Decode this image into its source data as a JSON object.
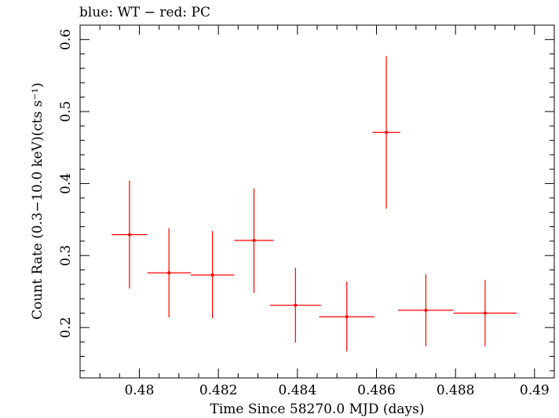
{
  "chart_data": {
    "type": "scatter",
    "title": "blue: WT − red: PC",
    "xlabel": "Time Since 58270.0 MJD (days)",
    "ylabel": "Count Rate (0.3−10.0 keV)(cts s⁻¹)",
    "xlim": [
      0.4785,
      0.4905
    ],
    "ylim": [
      0.13,
      0.62
    ],
    "x_ticks": [
      0.48,
      0.482,
      0.484,
      0.486,
      0.488,
      0.49
    ],
    "x_tick_labels": [
      "0.48",
      "0.482",
      "0.484",
      "0.486",
      "0.488",
      "0.49"
    ],
    "y_ticks": [
      0.2,
      0.3,
      0.4,
      0.5,
      0.6
    ],
    "y_tick_labels": [
      "0.2",
      "0.3",
      "0.4",
      "0.5",
      "0.6"
    ],
    "grid": false,
    "series": [
      {
        "color": "#ff0000",
        "points": [
          {
            "x": 0.47975,
            "y": 0.329,
            "xerr": 0.00045,
            "yerr_low": 0.075,
            "yerr_high": 0.075
          },
          {
            "x": 0.48075,
            "y": 0.276,
            "xerr": 0.00055,
            "yerr_low": 0.062,
            "yerr_high": 0.062
          },
          {
            "x": 0.48185,
            "y": 0.273,
            "xerr": 0.00055,
            "yerr_low": 0.06,
            "yerr_high": 0.061
          },
          {
            "x": 0.4829,
            "y": 0.321,
            "xerr": 0.0005,
            "yerr_low": 0.073,
            "yerr_high": 0.072
          },
          {
            "x": 0.48395,
            "y": 0.231,
            "xerr": 0.00065,
            "yerr_low": 0.052,
            "yerr_high": 0.052
          },
          {
            "x": 0.48525,
            "y": 0.215,
            "xerr": 0.0007,
            "yerr_low": 0.048,
            "yerr_high": 0.049
          },
          {
            "x": 0.48625,
            "y": 0.471,
            "xerr": 0.00035,
            "yerr_low": 0.106,
            "yerr_high": 0.106
          },
          {
            "x": 0.48725,
            "y": 0.224,
            "xerr": 0.0007,
            "yerr_low": 0.05,
            "yerr_high": 0.05
          },
          {
            "x": 0.48875,
            "y": 0.22,
            "xerr": 0.0008,
            "yerr_low": 0.046,
            "yerr_high": 0.046
          }
        ]
      }
    ]
  }
}
